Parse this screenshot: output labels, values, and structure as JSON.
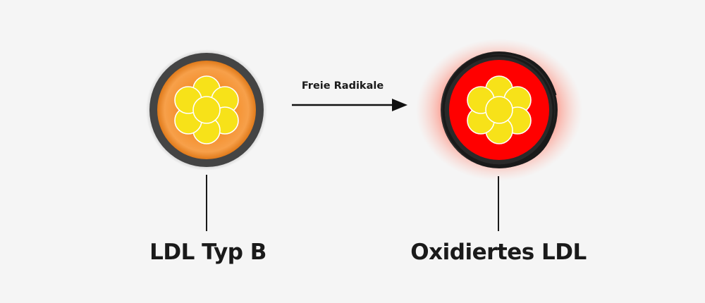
{
  "diagram": {
    "process_label": "Freie Radikale",
    "nodes": [
      {
        "label": "LDL Typ B",
        "core_color": "#f4902e",
        "shell_color": "#444444"
      },
      {
        "label": "Oxidiertes LDL",
        "core_color": "#ff0000",
        "shell_color": "#2a2a2a",
        "glow_color": "#ff7060"
      }
    ],
    "inner_lipid_color": "#f7e219"
  }
}
